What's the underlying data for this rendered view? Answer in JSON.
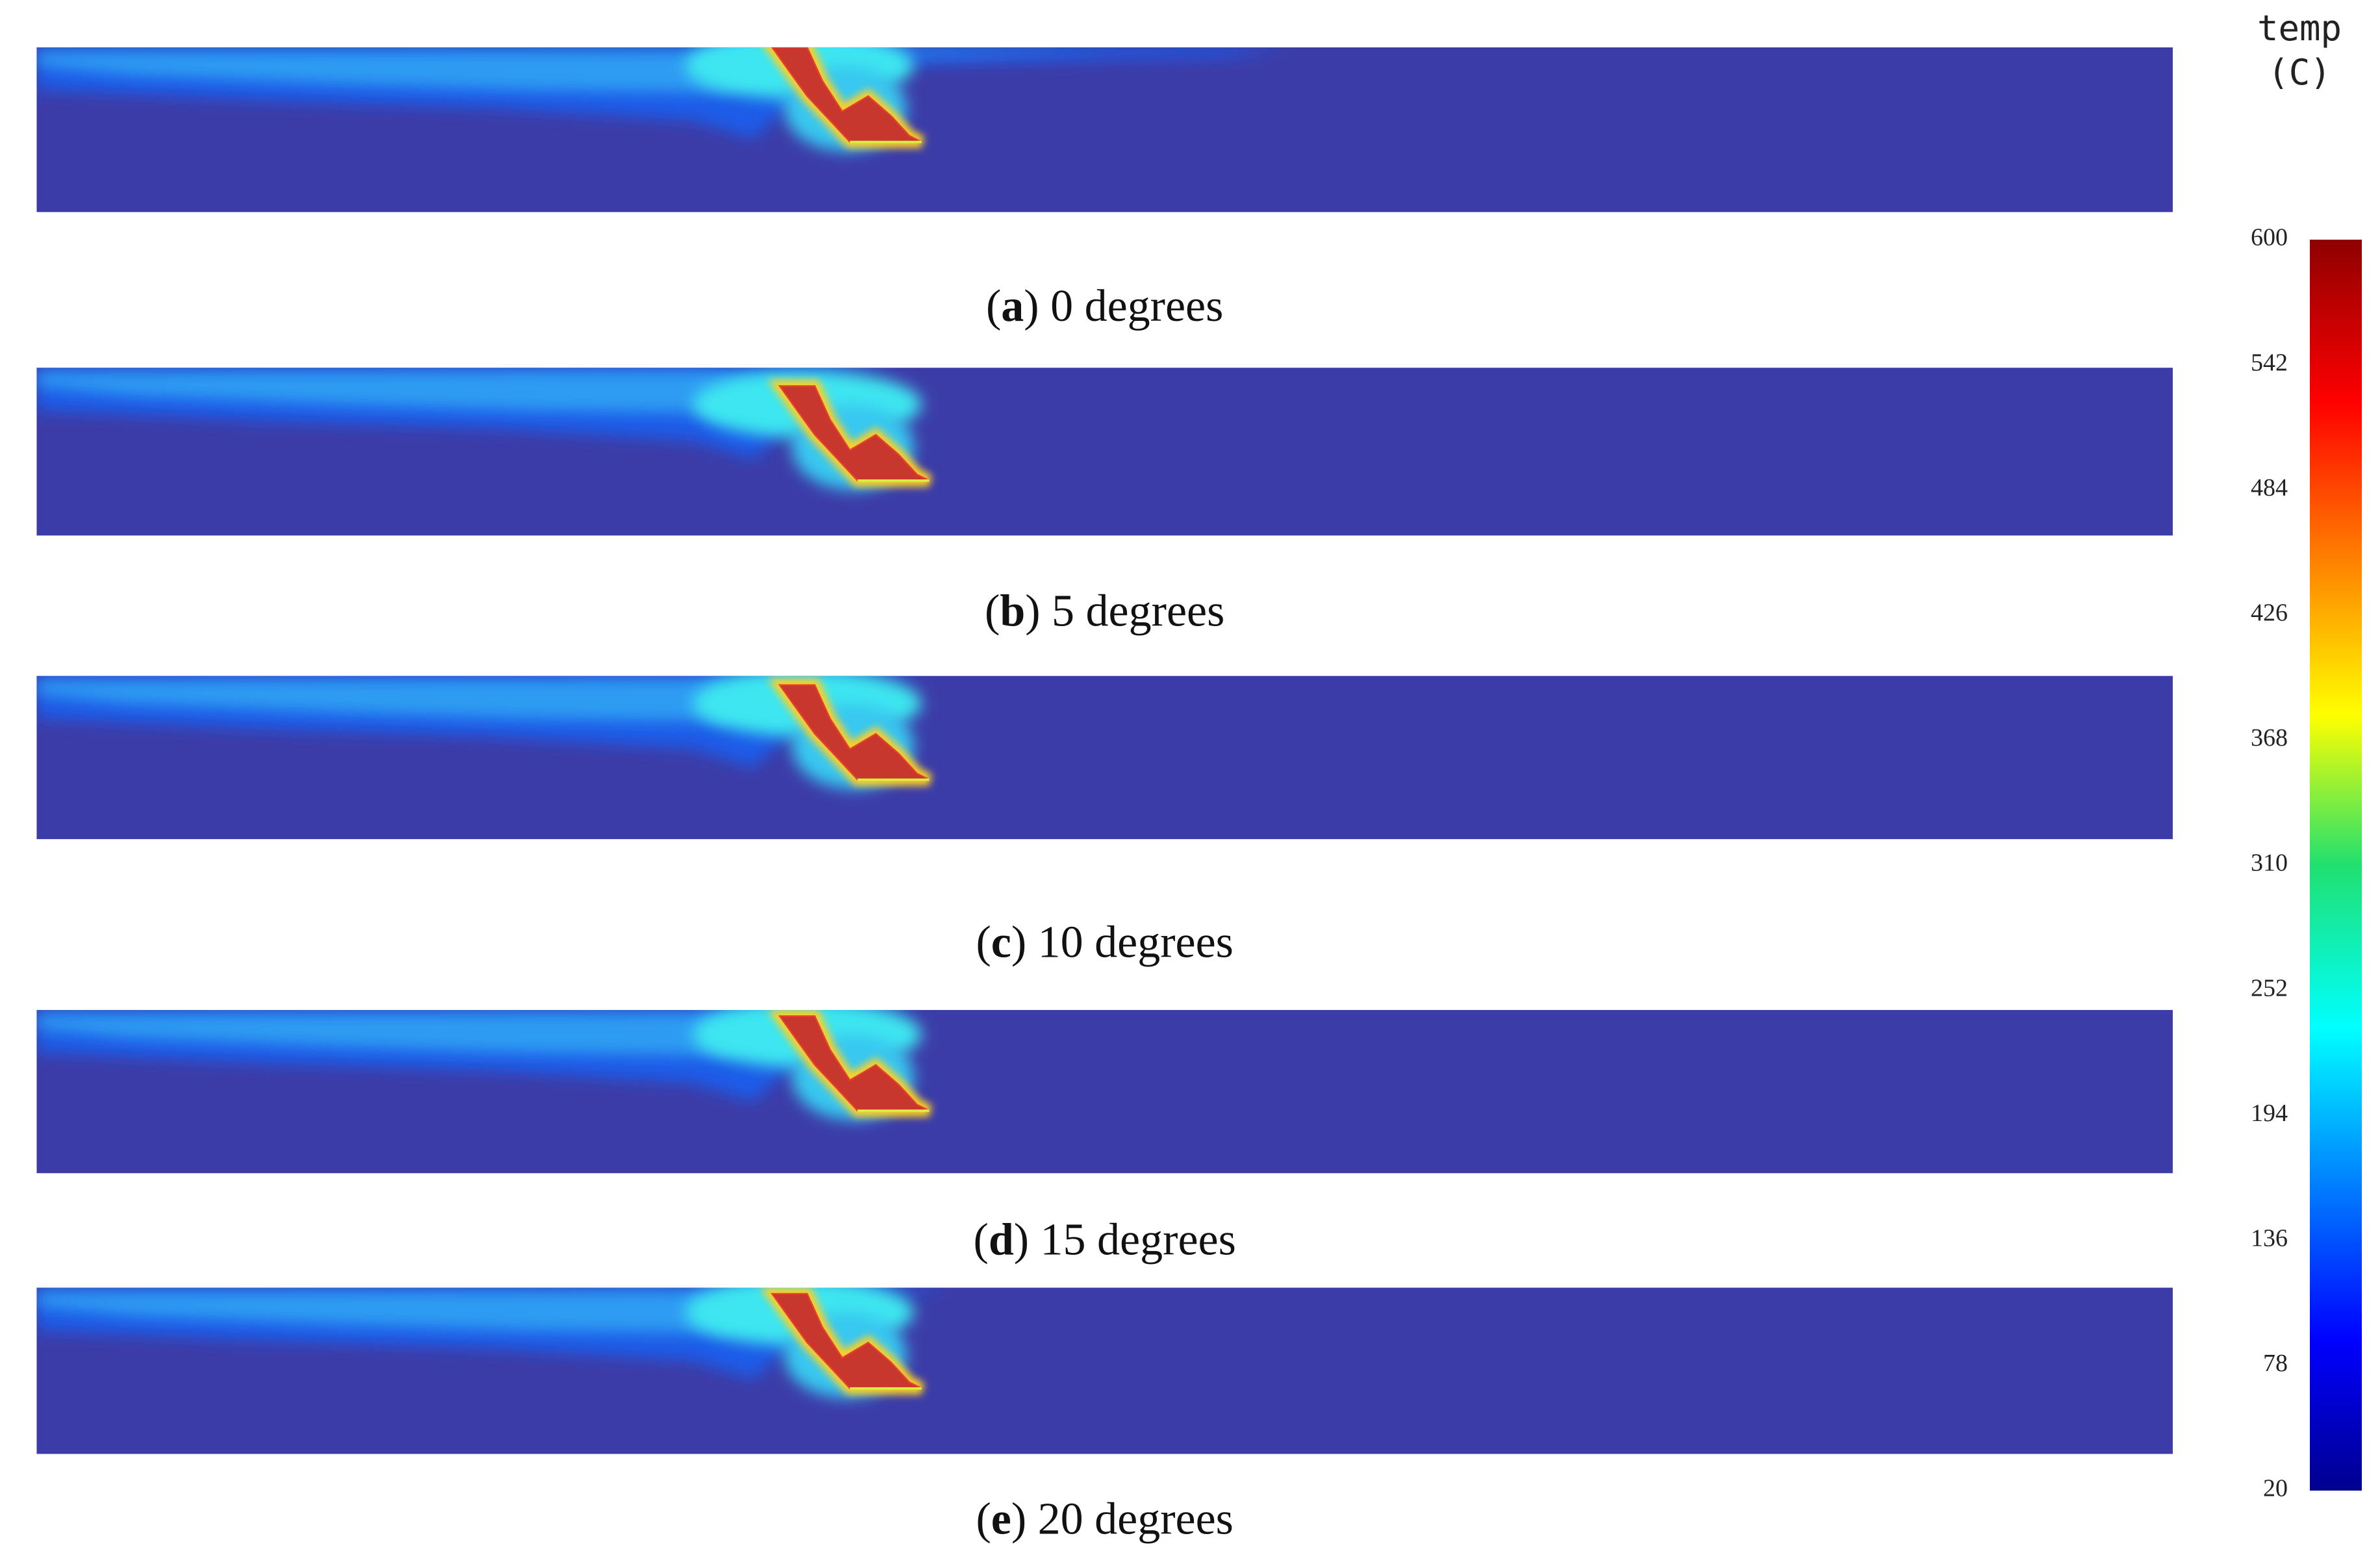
{
  "panels": [
    {
      "caption": [
        "(",
        "a",
        ") 0 degrees"
      ]
    },
    {
      "caption": [
        "(",
        "b",
        ") 5 degrees"
      ]
    },
    {
      "caption": [
        "(",
        "c",
        ") 10 degrees"
      ]
    },
    {
      "caption": [
        "(",
        "d",
        ") 15 degrees"
      ]
    },
    {
      "caption": [
        "(",
        "e",
        ") 20 degrees"
      ]
    }
  ],
  "colorbar": {
    "title": "temp",
    "unit": "(C)",
    "ticks": [
      600,
      542,
      484,
      426,
      368,
      310,
      252,
      194,
      136,
      78,
      20
    ]
  }
}
